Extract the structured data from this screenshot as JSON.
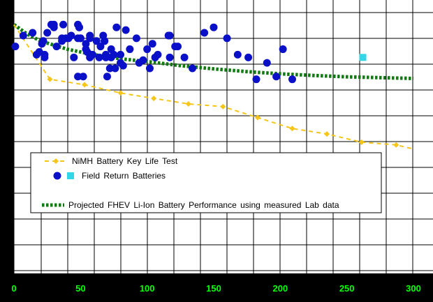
{
  "chart_data": {
    "type": "scatter",
    "title": "",
    "xlabel": "",
    "ylabel": "",
    "xlim": [
      0,
      300
    ],
    "ylim": [
      0,
      100
    ],
    "grid": true,
    "x_ticks": [
      "0",
      "50",
      "100",
      "150",
      "200",
      "250",
      "300"
    ],
    "legend_placement": "lower-left",
    "colors": {
      "background": "#000000",
      "plot_area": "#ffffff",
      "grid": "#000000",
      "tick_labels": "#00ff00",
      "nimh": "#f5c518",
      "field": "#0a10c8",
      "field_cyan": "#33d6e6",
      "projection": "#0f7a0f"
    },
    "series": [
      {
        "name": "NiMH Battery Key Life Test",
        "style": "dashed-line-diamond-markers",
        "x": [
          0,
          27,
          53,
          80,
          105,
          131,
          157,
          183,
          209,
          235,
          261,
          287,
          300
        ],
        "y": [
          91,
          71,
          69,
          66,
          64,
          62,
          61,
          57,
          53,
          51,
          48,
          47,
          45.5
        ]
      },
      {
        "name": "Field Return Batteries",
        "style": "circle-markers",
        "x": [
          1,
          7,
          14,
          17,
          19,
          21,
          22,
          23,
          23,
          25,
          28,
          30,
          30,
          32,
          36,
          36,
          37,
          39,
          41,
          43,
          45,
          48,
          48,
          48,
          49,
          49,
          50,
          50,
          52,
          54,
          54,
          55,
          57,
          57,
          57,
          58,
          59,
          62,
          64,
          65,
          67,
          68,
          68,
          69,
          69,
          70,
          72,
          73,
          73,
          75,
          76,
          77,
          80,
          80,
          82,
          84,
          87,
          92,
          94,
          97,
          100,
          102,
          104,
          106,
          108,
          116,
          117,
          117,
          121,
          123,
          128,
          134,
          143,
          150,
          160,
          168,
          176,
          182,
          190,
          197,
          202,
          209
        ],
        "y": [
          83,
          87,
          88,
          80,
          81,
          84,
          85,
          79,
          80,
          88,
          91,
          91,
          90,
          83,
          85,
          86,
          91,
          86,
          86,
          87,
          79,
          72,
          86,
          91,
          90,
          90,
          86,
          86,
          72,
          82,
          84,
          81,
          87,
          86,
          79,
          80,
          80,
          85,
          79,
          83,
          87,
          85,
          85,
          79,
          80,
          72,
          75,
          79,
          82,
          80,
          75,
          90,
          77,
          80,
          76,
          89,
          82,
          86,
          77,
          78,
          82,
          75,
          84,
          79,
          80,
          87,
          87,
          79,
          83,
          83,
          79,
          75,
          88,
          90,
          86,
          80,
          79,
          71,
          77,
          72,
          82,
          71
        ]
      },
      {
        "name": "",
        "style": "square-marker",
        "x": [
          262
        ],
        "y": [
          79
        ]
      },
      {
        "name": "Projected FHEV Li-Ion Battery Performance using measured Lab data",
        "style": "dotted-thick-line",
        "x": [
          0,
          10,
          20,
          40,
          60,
          80,
          100,
          125,
          150,
          175,
          200,
          225,
          250,
          275,
          300
        ],
        "y": [
          91,
          87.5,
          85,
          82,
          80,
          78.5,
          77.5,
          76,
          74.8,
          73.8,
          73,
          72.4,
          71.9,
          71.6,
          71.3
        ]
      }
    ],
    "legend": {
      "entries": [
        "NiMH Battery Key Life Test",
        "Field Return Batteries",
        "Projected FHEV Li-Ion Battery Performance using measured Lab data"
      ]
    }
  }
}
